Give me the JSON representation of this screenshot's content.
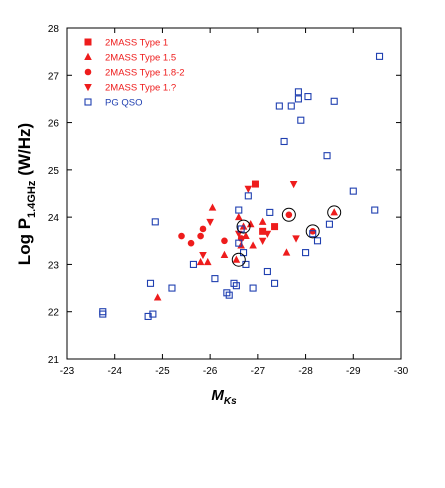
{
  "chart_data": {
    "type": "scatter",
    "xlabel": "M",
    "xlabel_sub": "Ks",
    "ylabel": "Log P",
    "ylabel_sub": "1.4GHz",
    "ylabel_unit": "(W/Hz)",
    "xlim": [
      -23,
      -30
    ],
    "ylim": [
      21,
      28
    ],
    "x_ticks": [
      -23,
      -24,
      -25,
      -26,
      -27,
      -28,
      -29,
      -30
    ],
    "y_ticks": [
      21,
      22,
      23,
      24,
      25,
      26,
      27,
      28
    ],
    "grid": false,
    "legend_position": "top-left",
    "colors": {
      "red": "#ee1c1c",
      "blue": "#1f3fb0"
    },
    "series": [
      {
        "name": "2MASS Type 1",
        "marker": "square",
        "color": "#ee1c1c",
        "points": [
          [
            -26.95,
            24.7
          ],
          [
            -27.35,
            23.8
          ],
          [
            -27.1,
            23.7
          ]
        ]
      },
      {
        "name": "2MASS Type 1.5",
        "marker": "triangle-up",
        "color": "#ee1c1c",
        "points": [
          [
            -24.9,
            22.3
          ],
          [
            -25.8,
            23.05
          ],
          [
            -25.95,
            23.05
          ],
          [
            -26.05,
            24.2
          ],
          [
            -26.3,
            23.2
          ],
          [
            -26.55,
            23.1
          ],
          [
            -26.6,
            24.0
          ],
          [
            -26.65,
            23.4
          ],
          [
            -26.75,
            23.6
          ],
          [
            -26.85,
            23.85
          ],
          [
            -26.9,
            23.4
          ],
          [
            -27.1,
            23.9
          ],
          [
            -27.6,
            23.25
          ],
          [
            -28.6,
            24.1
          ],
          [
            -26.7,
            23.8
          ]
        ]
      },
      {
        "name": "2MASS Type 1.8-2",
        "marker": "circle",
        "color": "#ee1c1c",
        "points": [
          [
            -25.4,
            23.6
          ],
          [
            -25.6,
            23.45
          ],
          [
            -25.8,
            23.6
          ],
          [
            -25.85,
            23.75
          ],
          [
            -26.3,
            23.5
          ],
          [
            -26.65,
            23.55
          ],
          [
            -27.65,
            24.05
          ],
          [
            -28.15,
            23.7
          ]
        ]
      },
      {
        "name": "2MASS Type 1.?",
        "marker": "triangle-down",
        "color": "#ee1c1c",
        "points": [
          [
            -25.85,
            23.2
          ],
          [
            -26.0,
            23.9
          ],
          [
            -26.8,
            24.6
          ],
          [
            -27.1,
            23.5
          ],
          [
            -27.75,
            24.7
          ],
          [
            -27.8,
            23.55
          ],
          [
            -27.2,
            23.65
          ],
          [
            -26.6,
            23.65
          ]
        ]
      },
      {
        "name": "PG QSO",
        "marker": "open-square",
        "color": "#1f3fb0",
        "points": [
          [
            -23.75,
            21.95
          ],
          [
            -23.75,
            22.0
          ],
          [
            -24.7,
            21.9
          ],
          [
            -24.75,
            22.6
          ],
          [
            -24.85,
            23.9
          ],
          [
            -24.8,
            21.95
          ],
          [
            -25.2,
            22.5
          ],
          [
            -25.65,
            23.0
          ],
          [
            -26.1,
            22.7
          ],
          [
            -26.35,
            22.4
          ],
          [
            -26.4,
            22.35
          ],
          [
            -26.5,
            22.6
          ],
          [
            -26.6,
            24.15
          ],
          [
            -26.55,
            22.55
          ],
          [
            -26.6,
            23.45
          ],
          [
            -26.65,
            23.75
          ],
          [
            -26.7,
            23.25
          ],
          [
            -26.75,
            23.0
          ],
          [
            -26.8,
            24.45
          ],
          [
            -26.9,
            22.5
          ],
          [
            -27.2,
            22.85
          ],
          [
            -27.25,
            24.1
          ],
          [
            -27.35,
            22.6
          ],
          [
            -27.45,
            26.35
          ],
          [
            -27.55,
            25.6
          ],
          [
            -27.7,
            26.35
          ],
          [
            -27.85,
            26.5
          ],
          [
            -27.85,
            26.65
          ],
          [
            -27.9,
            26.05
          ],
          [
            -28.0,
            23.25
          ],
          [
            -28.05,
            26.55
          ],
          [
            -28.15,
            23.65
          ],
          [
            -28.25,
            23.5
          ],
          [
            -28.45,
            25.3
          ],
          [
            -28.5,
            23.85
          ],
          [
            -28.6,
            26.45
          ],
          [
            -29.0,
            24.55
          ],
          [
            -29.45,
            24.15
          ],
          [
            -29.55,
            27.4
          ]
        ]
      }
    ],
    "circled_points": [
      [
        -26.6,
        23.1
      ],
      [
        -26.7,
        23.8
      ],
      [
        -27.65,
        24.05
      ],
      [
        -28.15,
        23.7
      ],
      [
        -28.6,
        24.1
      ]
    ]
  }
}
